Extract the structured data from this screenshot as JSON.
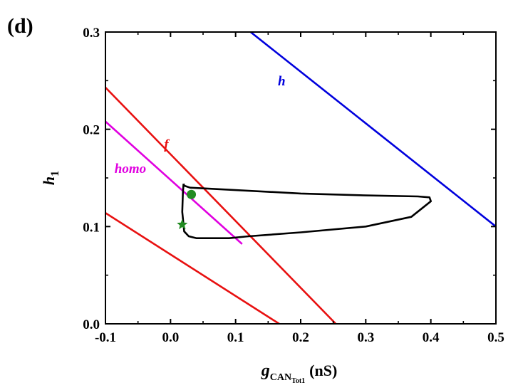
{
  "panel_label": "(d)",
  "chart_data": {
    "type": "line",
    "xlabel": {
      "main": "g",
      "subscript": "CAN",
      "sub_subscript": "Tot1",
      "unit": "(nS)"
    },
    "ylabel": {
      "main": "h",
      "subscript": "1"
    },
    "xlim": [
      -0.1,
      0.5
    ],
    "ylim": [
      0.0,
      0.3
    ],
    "xticks": [
      -0.1,
      0.0,
      0.1,
      0.2,
      0.3,
      0.4,
      0.5
    ],
    "xtick_labels": [
      "-0.1",
      "0.0",
      "0.1",
      "0.2",
      "0.3",
      "0.4",
      "0.5"
    ],
    "yticks": [
      0.0,
      0.1,
      0.2,
      0.3
    ],
    "ytick_labels": [
      "0.0",
      "0.1",
      "0.2",
      "0.3"
    ],
    "grid": false,
    "series": [
      {
        "label": "h",
        "color": "#0000dd",
        "x": [
          0.123,
          0.5
        ],
        "y": [
          0.3,
          0.1
        ]
      },
      {
        "label": "f",
        "color": "#e81010",
        "x": [
          -0.1,
          0.254
        ],
        "y": [
          0.243,
          0.0
        ]
      },
      {
        "label": "",
        "color": "#e81010",
        "x": [
          -0.1,
          0.167
        ],
        "y": [
          0.114,
          0.0
        ]
      },
      {
        "label": "homo",
        "color": "#e000e0",
        "x": [
          -0.1,
          0.11
        ],
        "y": [
          0.208,
          0.082
        ]
      },
      {
        "label": "",
        "color": "#000000",
        "x": [
          0.02,
          0.021,
          0.03,
          0.2,
          0.3,
          0.38,
          0.398,
          0.4,
          0.37,
          0.3,
          0.2,
          0.12,
          0.09,
          0.06,
          0.04,
          0.028,
          0.021,
          0.018,
          0.019,
          0.02
        ],
        "y": [
          0.144,
          0.142,
          0.14,
          0.134,
          0.132,
          0.131,
          0.13,
          0.126,
          0.11,
          0.1,
          0.094,
          0.09,
          0.088,
          0.088,
          0.088,
          0.09,
          0.095,
          0.115,
          0.135,
          0.144
        ]
      }
    ],
    "markers": [
      {
        "shape": "circle",
        "color": "#228b22",
        "x": 0.032,
        "y": 0.133
      },
      {
        "shape": "star",
        "color": "#228b22",
        "x": 0.018,
        "y": 0.102
      }
    ],
    "annotations": [
      {
        "text": "h",
        "color": "#0000dd",
        "x": 0.165,
        "y": 0.245
      },
      {
        "text": "f",
        "color": "#e81010",
        "x": -0.01,
        "y": 0.18
      },
      {
        "text": "homo",
        "color": "#e000e0",
        "x": -0.086,
        "y": 0.155
      }
    ]
  }
}
